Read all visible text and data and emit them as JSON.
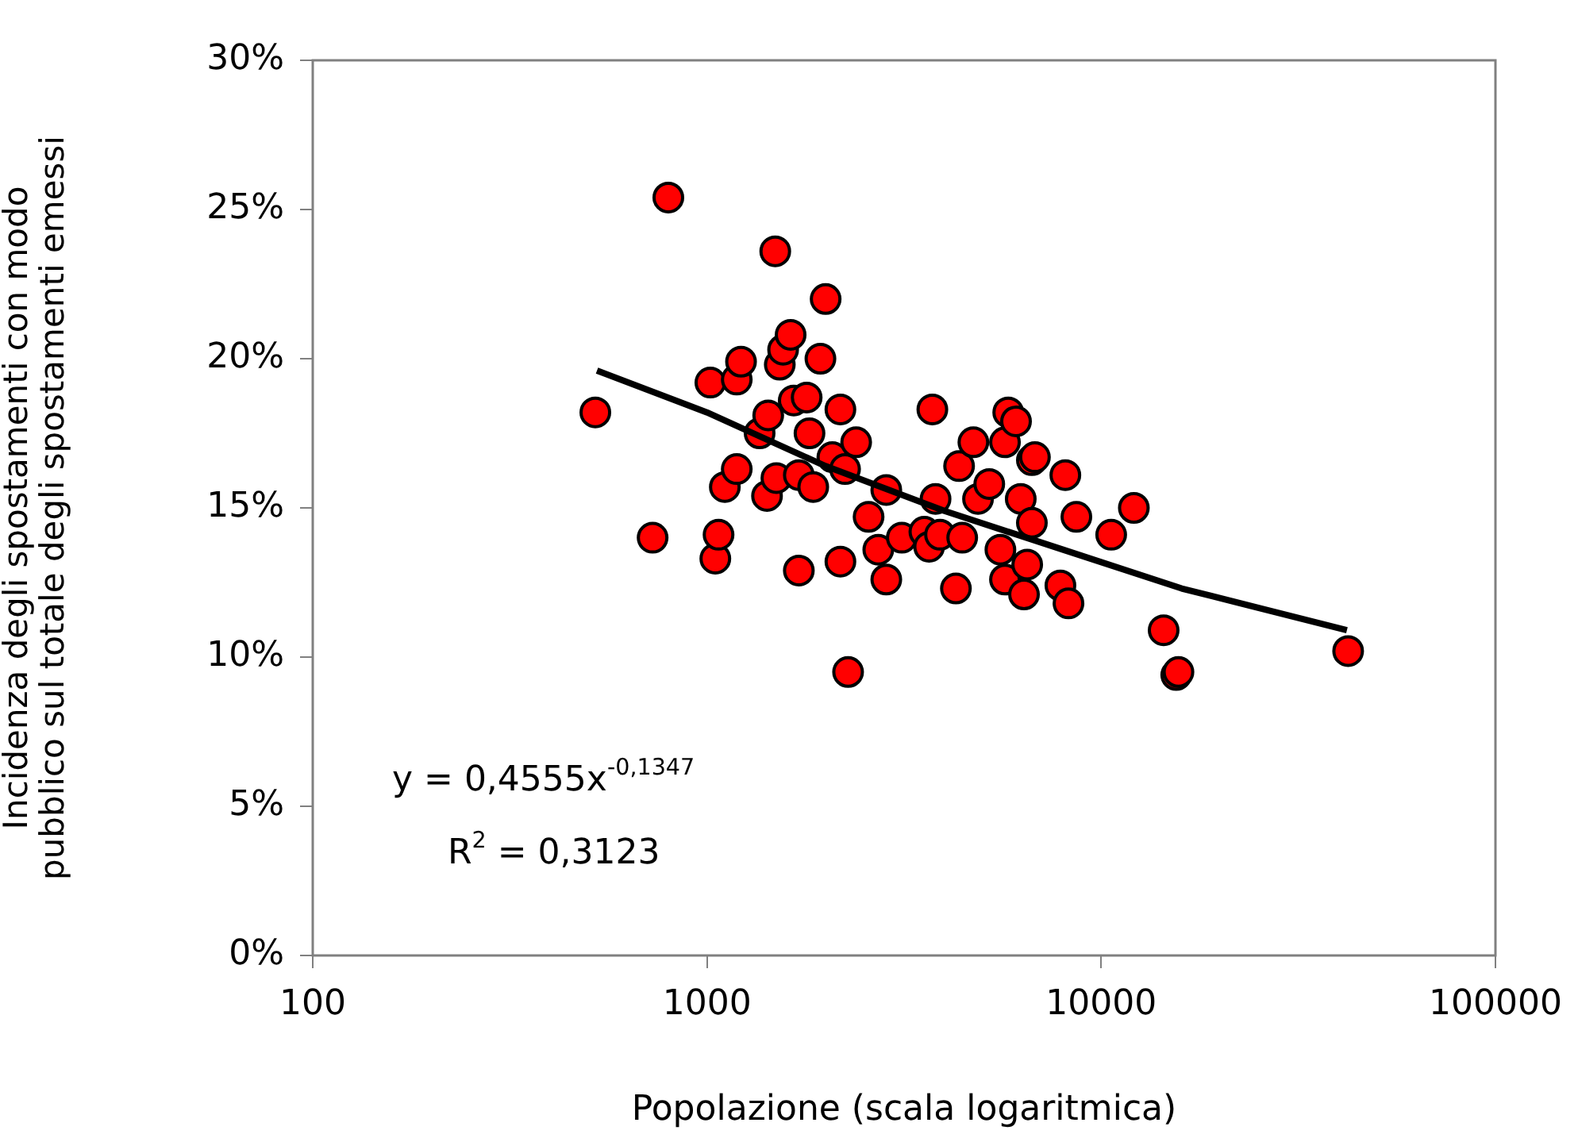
{
  "chart_data": {
    "type": "scatter",
    "xlabel": "Popolazione (scala logaritmica)",
    "ylabel": "Incidenza degli spostamenti con modo pubblico sul totale degli spostamenti emessi",
    "log": "x",
    "grid": false,
    "legend": false,
    "marker": "circle",
    "xlim": [
      100,
      100000
    ],
    "xticks": [
      100,
      1000,
      10000,
      100000
    ],
    "ylim": [
      0,
      30
    ],
    "yticks": [
      {
        "value": 0,
        "label": "0%"
      },
      {
        "value": 5,
        "label": "5%"
      },
      {
        "value": 10,
        "label": "10%"
      },
      {
        "value": 15,
        "label": "15%"
      },
      {
        "value": 20,
        "label": "20%"
      },
      {
        "value": 25,
        "label": "25%"
      },
      {
        "value": 30,
        "label": "30%"
      }
    ],
    "annotations": [
      "y = 0,4555x$^{-0,1347}$",
      "R$^{2}$ = 0,3123"
    ],
    "series": [
      {
        "color": "#ff0000",
        "x": [
          521,
          728,
          798,
          1020,
          1050,
          1070,
          1110,
          1190,
          1190,
          1220,
          1360,
          1420,
          1430,
          1500,
          1530,
          1560,
          1490,
          1630,
          1660,
          1710,
          1710,
          1790,
          1820,
          1860,
          1940,
          2000,
          2080,
          2180,
          2180,
          2240,
          2280,
          2390,
          2570,
          2720,
          2850,
          2850,
          3120,
          3560,
          3660,
          3730,
          3800,
          3900,
          4280,
          4360,
          4440,
          4740,
          4870,
          5200,
          5550,
          5700,
          5700,
          5810,
          6080,
          6250,
          6370,
          6490,
          6670,
          6670,
          6790,
          7880,
          8110,
          8260,
          8650,
          10600,
          12100,
          14400,
          15500,
          15700,
          42300
        ],
        "values": [
          18.2,
          14.0,
          25.4,
          19.2,
          13.3,
          14.1,
          15.7,
          16.3,
          19.3,
          19.9,
          17.5,
          15.4,
          18.1,
          16.0,
          19.8,
          20.3,
          23.6,
          20.8,
          18.6,
          16.1,
          12.9,
          18.7,
          17.5,
          15.7,
          20.0,
          22.0,
          16.7,
          18.3,
          13.2,
          16.3,
          9.5,
          17.2,
          14.7,
          13.6,
          12.6,
          15.6,
          14.0,
          14.2,
          13.7,
          18.3,
          15.3,
          14.1,
          12.3,
          16.4,
          14.0,
          17.2,
          15.3,
          15.8,
          13.6,
          17.2,
          12.6,
          18.2,
          17.9,
          15.3,
          12.1,
          13.1,
          14.5,
          16.6,
          16.7,
          12.4,
          16.1,
          11.8,
          14.7,
          14.1,
          15.0,
          10.9,
          9.4,
          9.5,
          10.2
        ]
      },
      {
        "type": "line",
        "color": "#000000",
        "marker": "none",
        "x": [
          526,
          1000,
          2000,
          4000,
          8000,
          16000,
          42000
        ],
        "values": [
          19.6,
          18.2,
          16.4,
          14.9,
          13.6,
          12.3,
          10.9
        ]
      }
    ]
  }
}
